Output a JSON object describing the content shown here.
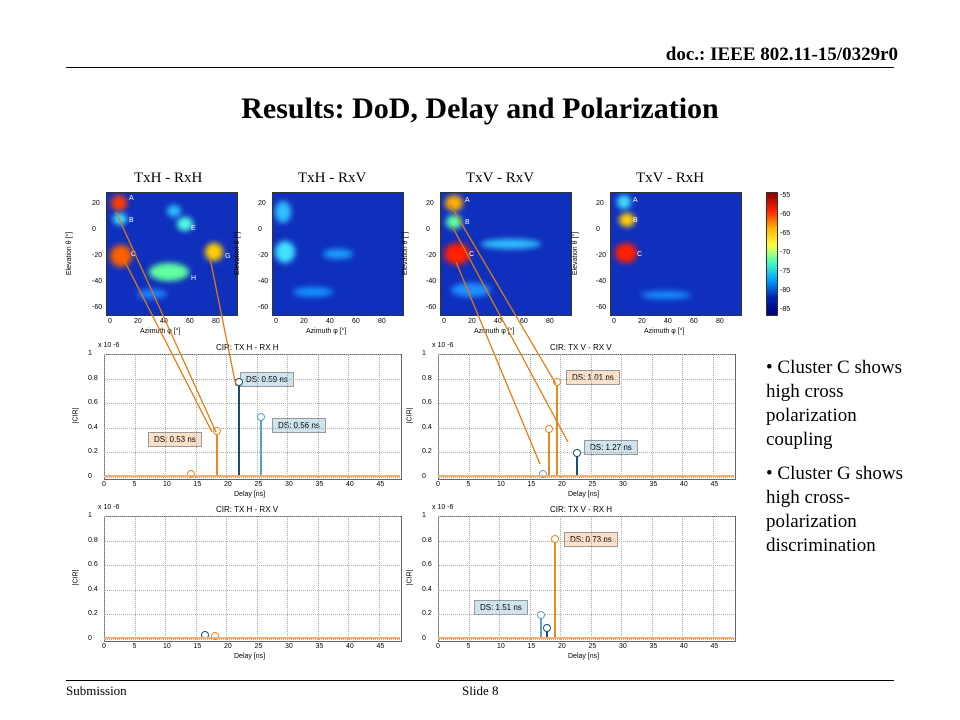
{
  "header": {
    "doc_id": "doc.: IEEE 802.11-15/0329r0"
  },
  "title": "Results: DoD, Delay and Polarization",
  "panels": [
    {
      "label": "TxH - RxH"
    },
    {
      "label": "TxH - RxV"
    },
    {
      "label": "TxV - RxV"
    },
    {
      "label": "TxV - RxH"
    }
  ],
  "map_axes": {
    "xlabel": "Azimuth φ [°]",
    "ylabel": "Elevation θ [°]",
    "xticks": [
      "0",
      "20",
      "40",
      "60",
      "80"
    ],
    "yticks": [
      "20",
      "0",
      "-20",
      "-40",
      "-60"
    ]
  },
  "colorbar": {
    "ticks": [
      "-55",
      "-60",
      "-65",
      "-70",
      "-75",
      "-80",
      "-85"
    ]
  },
  "cluster_labels": {
    "hh": [
      "A",
      "B",
      "E",
      "C",
      "G",
      "H"
    ],
    "vv": [
      "A",
      "B",
      "C"
    ],
    "vh": [
      "A",
      "B",
      "C"
    ]
  },
  "cir_plots": [
    {
      "title": "CIR: TX H - RX H",
      "ds": [
        {
          "text": "DS: 0.59 ns",
          "color": "blue"
        },
        {
          "text": "DS: 0.56 ns",
          "color": "blue"
        },
        {
          "text": "DS: 0.53 ns",
          "color": "orange"
        }
      ]
    },
    {
      "title": "CIR: TX V - RX V",
      "ds": [
        {
          "text": "DS: 1.01 ns",
          "color": "orange"
        },
        {
          "text": "DS: 1.27 ns",
          "color": "blue"
        }
      ]
    },
    {
      "title": "CIR: TX H - RX V",
      "ds": []
    },
    {
      "title": "CIR: TX V - RX H",
      "ds": [
        {
          "text": "DS: 0.73 ns",
          "color": "orange"
        },
        {
          "text": "DS: 1.51 ns",
          "color": "blue"
        }
      ]
    }
  ],
  "cir_axes": {
    "exponent": "x 10",
    "exp_power": "-6",
    "ylabel": "|CIR|",
    "xlabel": "Delay [ns]",
    "yticks": [
      "1",
      "0.8",
      "0.6",
      "0.4",
      "0.2",
      "0"
    ],
    "xticks": [
      "0",
      "5",
      "10",
      "15",
      "20",
      "25",
      "30",
      "35",
      "40",
      "45"
    ]
  },
  "bullets": [
    "Cluster C shows high cross polarization coupling",
    "Cluster G shows high cross-polarization discrimination"
  ],
  "footer": {
    "left": "Submission",
    "center": "Slide 8"
  }
}
